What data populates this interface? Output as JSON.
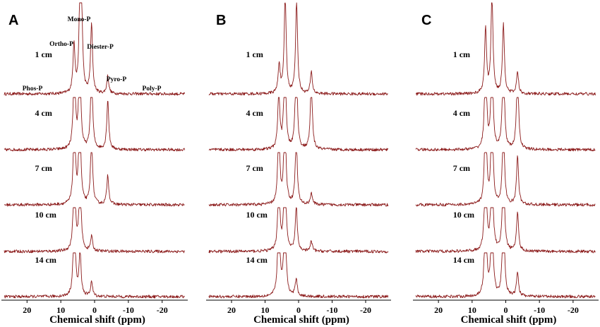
{
  "colors": {
    "spectrum": "#8b1a1a",
    "axis": "#000000"
  },
  "chart_data": [
    {
      "type": "line",
      "panel": "A",
      "xlabel": "Chemical shift (ppm)",
      "xlim": [
        28,
        -28
      ],
      "x_reversed": true,
      "xticks": [
        20,
        10,
        0,
        -10,
        -20
      ],
      "xtick_labels": [
        "20",
        "10",
        "0",
        "-10",
        "-20"
      ],
      "species_labels": [
        {
          "name": "Phos-P",
          "ppm": 21
        },
        {
          "name": "Ortho-P",
          "ppm": 6
        },
        {
          "name": "Mono-P",
          "ppm": 4
        },
        {
          "name": "Diester-P",
          "ppm": 0
        },
        {
          "name": "Pyro-P",
          "ppm": -4
        },
        {
          "name": "Poly-P",
          "ppm": -19
        }
      ],
      "series": [
        {
          "name": "1 cm",
          "peaks": [
            {
              "ppm": 6.1,
              "height": 0.5
            },
            {
              "ppm": 4.3,
              "height": 1.0
            },
            {
              "ppm": 3.8,
              "height": 0.6
            },
            {
              "ppm": 0.9,
              "height": 0.7
            },
            {
              "ppm": -3.9,
              "height": 0.18
            }
          ]
        },
        {
          "name": "4 cm",
          "peaks": [
            {
              "ppm": 6.0,
              "height": 0.9
            },
            {
              "ppm": 4.4,
              "height": 1.0
            },
            {
              "ppm": 0.9,
              "height": 0.85
            },
            {
              "ppm": -3.9,
              "height": 0.5
            }
          ]
        },
        {
          "name": "7 cm",
          "peaks": [
            {
              "ppm": 6.0,
              "height": 0.9
            },
            {
              "ppm": 4.4,
              "height": 1.0
            },
            {
              "ppm": 0.9,
              "height": 0.7
            },
            {
              "ppm": -3.9,
              "height": 0.3
            }
          ]
        },
        {
          "name": "10 cm",
          "peaks": [
            {
              "ppm": 6.0,
              "height": 0.9
            },
            {
              "ppm": 4.3,
              "height": 0.8
            },
            {
              "ppm": 0.9,
              "height": 0.15
            }
          ]
        },
        {
          "name": "14 cm",
          "peaks": [
            {
              "ppm": 6.0,
              "height": 0.95
            },
            {
              "ppm": 4.3,
              "height": 0.45
            },
            {
              "ppm": 0.9,
              "height": 0.15
            }
          ]
        }
      ]
    },
    {
      "type": "line",
      "panel": "B",
      "xlabel": "Chemical shift (ppm)",
      "xlim": [
        28,
        -28
      ],
      "x_reversed": true,
      "xticks": [
        20,
        10,
        0,
        -10,
        -20
      ],
      "xtick_labels": [
        "20",
        "10",
        "0",
        "-10",
        "-20"
      ],
      "series": [
        {
          "name": "1 cm",
          "peaks": [
            {
              "ppm": 5.8,
              "height": 0.3
            },
            {
              "ppm": 4.0,
              "height": 1.0
            },
            {
              "ppm": 0.6,
              "height": 0.95
            },
            {
              "ppm": -3.8,
              "height": 0.22
            }
          ]
        },
        {
          "name": "4 cm",
          "peaks": [
            {
              "ppm": 5.9,
              "height": 0.6
            },
            {
              "ppm": 4.1,
              "height": 1.0
            },
            {
              "ppm": 0.7,
              "height": 1.0
            },
            {
              "ppm": -3.8,
              "height": 0.7
            }
          ]
        },
        {
          "name": "7 cm",
          "peaks": [
            {
              "ppm": 5.9,
              "height": 0.8
            },
            {
              "ppm": 4.1,
              "height": 1.0
            },
            {
              "ppm": 0.7,
              "height": 0.7
            },
            {
              "ppm": -3.8,
              "height": 0.12
            }
          ]
        },
        {
          "name": "10 cm",
          "peaks": [
            {
              "ppm": 5.9,
              "height": 0.75
            },
            {
              "ppm": 4.1,
              "height": 1.0
            },
            {
              "ppm": 0.7,
              "height": 0.45
            },
            {
              "ppm": -3.8,
              "height": 0.1
            }
          ]
        },
        {
          "name": "14 cm",
          "peaks": [
            {
              "ppm": 5.9,
              "height": 1.0
            },
            {
              "ppm": 4.1,
              "height": 1.0
            },
            {
              "ppm": 0.7,
              "height": 0.18
            }
          ]
        }
      ]
    },
    {
      "type": "line",
      "panel": "C",
      "xlabel": "Chemical shift (ppm)",
      "xlim": [
        28,
        -28
      ],
      "x_reversed": true,
      "xticks": [
        20,
        10,
        0,
        -10,
        -20
      ],
      "xtick_labels": [
        "20",
        "10",
        "0",
        "-10",
        "-20"
      ],
      "series": [
        {
          "name": "1 cm",
          "peaks": [
            {
              "ppm": 6.0,
              "height": 0.65
            },
            {
              "ppm": 4.1,
              "height": 1.0
            },
            {
              "ppm": 0.7,
              "height": 0.7
            },
            {
              "ppm": -3.5,
              "height": 0.22
            }
          ]
        },
        {
          "name": "4 cm",
          "peaks": [
            {
              "ppm": 6.0,
              "height": 1.0
            },
            {
              "ppm": 4.1,
              "height": 1.0
            },
            {
              "ppm": 0.7,
              "height": 1.0
            },
            {
              "ppm": -3.5,
              "height": 0.85
            }
          ]
        },
        {
          "name": "7 cm",
          "peaks": [
            {
              "ppm": 6.0,
              "height": 1.0
            },
            {
              "ppm": 4.1,
              "height": 1.0
            },
            {
              "ppm": 0.7,
              "height": 0.85
            },
            {
              "ppm": -3.5,
              "height": 0.5
            }
          ]
        },
        {
          "name": "10 cm",
          "peaks": [
            {
              "ppm": 6.0,
              "height": 1.0
            },
            {
              "ppm": 4.1,
              "height": 1.0
            },
            {
              "ppm": 0.7,
              "height": 0.95
            },
            {
              "ppm": -3.5,
              "height": 0.4
            }
          ]
        },
        {
          "name": "14 cm",
          "peaks": [
            {
              "ppm": 6.0,
              "height": 1.0
            },
            {
              "ppm": 4.1,
              "height": 1.0
            },
            {
              "ppm": 0.7,
              "height": 1.0
            },
            {
              "ppm": -3.5,
              "height": 0.25
            }
          ]
        }
      ]
    }
  ]
}
